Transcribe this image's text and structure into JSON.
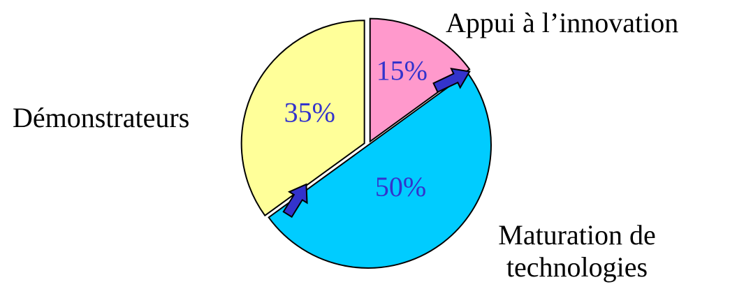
{
  "chart_data": {
    "type": "pie",
    "title": "",
    "slices": [
      {
        "label": "Appui à l’innovation",
        "value": 15,
        "value_label": "15%",
        "color": "#ff99cc"
      },
      {
        "label_lines": [
          "Maturation de",
          "technologies"
        ],
        "value": 50,
        "value_label": "50%",
        "color": "#00ccff"
      },
      {
        "label": "Démonstrateurs",
        "value": 35,
        "value_label": "35%",
        "color": "#ffff99"
      }
    ],
    "value_label_color": "#3333cc",
    "arrow_color": "#3333cc",
    "annotations": [
      {
        "type": "arrow",
        "from": "Appui à l’innovation",
        "to": "Maturation de technologies"
      },
      {
        "type": "arrow",
        "from": "Maturation de technologies",
        "to": "Démonstrateurs"
      }
    ],
    "legend": "none"
  }
}
